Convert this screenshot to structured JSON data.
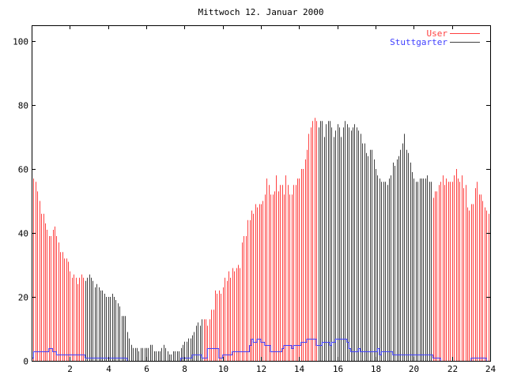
{
  "chart_data": {
    "type": "bar",
    "title": "Mittwoch 12. Januar 2000",
    "xlabel": "",
    "ylabel": "",
    "xlim": [
      0,
      24
    ],
    "ylim": [
      0,
      105
    ],
    "x_start": 0,
    "x_step": 0.1,
    "xticks": [
      2,
      4,
      6,
      8,
      10,
      12,
      14,
      16,
      18,
      20,
      22,
      24
    ],
    "yticks": [
      0,
      20,
      40,
      60,
      80,
      100
    ],
    "grid": false,
    "legend_position": "top-right",
    "dark_bar_ranges": [
      [
        2.8,
        9.0
      ],
      [
        15.0,
        21.0
      ]
    ],
    "series": [
      {
        "name": "User",
        "style": "impulses",
        "color": "#ff4040",
        "dark_color": "#404040",
        "values": [
          51,
          57,
          56,
          53,
          50,
          46,
          46,
          43,
          41,
          39,
          39,
          41,
          42,
          39,
          37,
          34,
          34,
          32,
          32,
          31,
          28,
          26,
          27,
          26,
          24,
          26,
          27,
          26,
          25,
          26,
          27,
          26,
          25,
          23,
          24,
          23,
          22,
          22,
          21,
          20,
          20,
          20,
          21,
          20,
          19,
          18,
          17,
          14,
          14,
          14,
          9,
          7,
          5,
          4,
          4,
          4,
          3,
          4,
          4,
          4,
          4,
          4,
          5,
          5,
          3,
          3,
          3,
          3,
          4,
          5,
          4,
          3,
          2,
          2,
          3,
          3,
          3,
          3,
          4,
          5,
          6,
          6,
          7,
          7,
          8,
          9,
          11,
          12,
          11,
          13,
          13,
          13,
          11,
          13,
          16,
          16,
          22,
          21,
          22,
          21,
          23,
          26,
          25,
          28,
          26,
          29,
          28,
          29,
          30,
          29,
          37,
          39,
          39,
          44,
          44,
          47,
          46,
          49,
          48,
          49,
          49,
          50,
          52,
          57,
          55,
          52,
          52,
          53,
          58,
          53,
          55,
          55,
          52,
          58,
          55,
          52,
          52,
          55,
          55,
          57,
          57,
          60,
          60,
          63,
          66,
          71,
          73,
          75,
          76,
          75,
          73,
          75,
          75,
          70,
          74,
          75,
          75,
          73,
          70,
          72,
          74,
          73,
          70,
          73,
          75,
          74,
          73,
          72,
          73,
          74,
          73,
          72,
          71,
          68,
          68,
          65,
          64,
          66,
          66,
          63,
          60,
          58,
          57,
          56,
          56,
          56,
          55,
          57,
          58,
          62,
          61,
          63,
          64,
          66,
          68,
          71,
          66,
          65,
          62,
          59,
          57,
          56,
          56,
          57,
          57,
          57,
          57,
          58,
          56,
          56,
          51,
          53,
          53,
          55,
          56,
          58,
          55,
          57,
          56,
          56,
          56,
          58,
          60,
          57,
          56,
          58,
          54,
          55,
          48,
          47,
          49,
          49,
          54,
          56,
          52,
          52,
          50,
          48,
          47,
          46
        ]
      },
      {
        "name": "Stuttgarter",
        "style": "steps",
        "color": "#4040ff",
        "legend_line_color": "#404040",
        "values": [
          1,
          3,
          3,
          3,
          3,
          3,
          3,
          3,
          3,
          4,
          4,
          3,
          3,
          2,
          2,
          2,
          2,
          2,
          2,
          2,
          2,
          2,
          2,
          2,
          2,
          2,
          2,
          2,
          1,
          1,
          1,
          1,
          1,
          1,
          1,
          1,
          1,
          1,
          1,
          1,
          1,
          1,
          1,
          1,
          1,
          1,
          1,
          1,
          1,
          1,
          0,
          0,
          0,
          0,
          0,
          0,
          0,
          0,
          0,
          0,
          0,
          0,
          0,
          0,
          0,
          0,
          0,
          0,
          0,
          0,
          0,
          0,
          0,
          0,
          0,
          0,
          0,
          0,
          1,
          1,
          1,
          1,
          1,
          1,
          2,
          2,
          2,
          2,
          2,
          1,
          1,
          1,
          4,
          4,
          4,
          4,
          4,
          4,
          1,
          1,
          2,
          2,
          2,
          2,
          2,
          3,
          3,
          3,
          3,
          3,
          3,
          3,
          3,
          3,
          5,
          7,
          6,
          6,
          7,
          7,
          6,
          6,
          5,
          5,
          5,
          3,
          3,
          3,
          3,
          3,
          3,
          4,
          5,
          5,
          5,
          5,
          4,
          5,
          5,
          5,
          5,
          6,
          6,
          6,
          7,
          7,
          7,
          7,
          7,
          5,
          5,
          5,
          6,
          6,
          6,
          6,
          5,
          6,
          6,
          7,
          7,
          7,
          7,
          7,
          7,
          6,
          4,
          3,
          3,
          3,
          3,
          4,
          3,
          3,
          3,
          3,
          3,
          3,
          3,
          3,
          3,
          4,
          2,
          3,
          3,
          3,
          3,
          3,
          3,
          2,
          2,
          2,
          2,
          2,
          2,
          2,
          2,
          2,
          2,
          2,
          2,
          2,
          2,
          2,
          2,
          2,
          2,
          2,
          2,
          2,
          1,
          1,
          1,
          1,
          0,
          0,
          0,
          0,
          0,
          0,
          0,
          0,
          0,
          0,
          0,
          0,
          0,
          0,
          0,
          0,
          1,
          1,
          1,
          1,
          1,
          1,
          1,
          1,
          0,
          0
        ]
      }
    ]
  }
}
